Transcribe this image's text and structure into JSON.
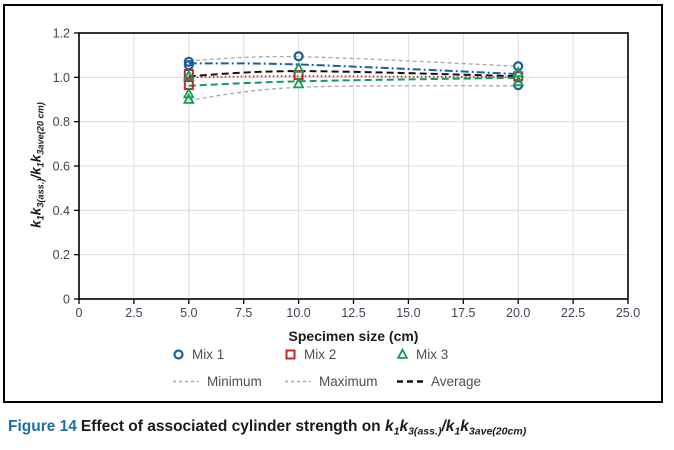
{
  "figure": {
    "caption_segments": [
      {
        "t": "Figure 14",
        "s": "fig"
      },
      {
        "t": "Effect of associated cylinder strength on ",
        "s": ""
      },
      {
        "t": "k",
        "s": "i"
      },
      {
        "t": "1",
        "s": "isub"
      },
      {
        "t": "k",
        "s": "i"
      },
      {
        "t": "3(ass.)",
        "s": "isub"
      },
      {
        "t": "/",
        "s": "i"
      },
      {
        "t": "k",
        "s": "i"
      },
      {
        "t": "1",
        "s": "isub"
      },
      {
        "t": "k",
        "s": "i"
      },
      {
        "t": "3ave(20cm)",
        "s": "isub"
      }
    ]
  },
  "chart_data": {
    "type": "scatter",
    "title": "",
    "xlabel": "Specimen size (cm)",
    "ylabel_segments": [
      {
        "t": "k",
        "s": "i"
      },
      {
        "t": "1",
        "s": "isub"
      },
      {
        "t": "k",
        "s": "i"
      },
      {
        "t": "3(ass.)",
        "s": "isub"
      },
      {
        "t": "/",
        "s": "i"
      },
      {
        "t": "k",
        "s": "i"
      },
      {
        "t": "1",
        "s": "isub"
      },
      {
        "t": "k",
        "s": "i"
      },
      {
        "t": "3ave(20 cm)",
        "s": "isub"
      }
    ],
    "xlim": [
      0,
      25
    ],
    "ylim": [
      0,
      1.2
    ],
    "xticks": [
      0,
      2.5,
      5,
      7.5,
      10,
      12.5,
      15,
      17.5,
      20,
      22.5,
      25
    ],
    "xtick_labels": [
      "0",
      "2.5",
      "5.0",
      "7.5",
      "10.0",
      "12.5",
      "15.0",
      "17.5",
      "20.0",
      "22.5",
      "25.0"
    ],
    "yticks": [
      0,
      0.2,
      0.4,
      0.6,
      0.8,
      1.0,
      1.2
    ],
    "ytick_labels": [
      "0",
      "0.2",
      "0.4",
      "0.6",
      "0.8",
      "1.0",
      "1.2"
    ],
    "grid": true,
    "legend_position": "bottom",
    "colors": {
      "mix1_blue": "#1e5f9e",
      "mix2_red": "#c5272d",
      "mix3_green": "#119d58",
      "minmax_gray": "#a8a8a8",
      "average_black": "#111111",
      "gridline": "#dcdcdc",
      "tick_text": "#3f4552",
      "caption_blue": "#1c6fa5"
    },
    "marker_series": [
      {
        "name": "Mix 1",
        "shape": "circle",
        "color": "#1e5f9e",
        "points": [
          [
            5,
            1.07
          ],
          [
            5,
            1.055
          ],
          [
            10,
            1.095
          ],
          [
            20,
            1.05
          ],
          [
            20,
            0.965
          ]
        ]
      },
      {
        "name": "Mix 2",
        "shape": "square",
        "color": "#c5272d",
        "points": [
          [
            5,
            1.015
          ],
          [
            5,
            0.965
          ],
          [
            10,
            1.01
          ],
          [
            20,
            1.005
          ]
        ]
      },
      {
        "name": "Mix 3",
        "shape": "triangle",
        "color": "#119d58",
        "points": [
          [
            5,
            1.005
          ],
          [
            5,
            0.925
          ],
          [
            5,
            0.9
          ],
          [
            10,
            1.04
          ],
          [
            10,
            0.97
          ],
          [
            20,
            1.02
          ],
          [
            20,
            0.98
          ]
        ]
      }
    ],
    "line_series": [
      {
        "name": "Maximum",
        "color": "#a8a8a8",
        "dash": "4 3",
        "width": 1.3,
        "points": [
          [
            5,
            1.075
          ],
          [
            10,
            1.093
          ],
          [
            20,
            1.05
          ]
        ]
      },
      {
        "name": "Minimum",
        "color": "#a8a8a8",
        "dash": "4 3",
        "width": 1.3,
        "points": [
          [
            5,
            0.897
          ],
          [
            10,
            0.955
          ],
          [
            20,
            0.962
          ]
        ]
      },
      {
        "name": "Mix 1 line",
        "color": "#1e5f9e",
        "dash": "8 3 2 3",
        "width": 2,
        "points": [
          [
            5,
            1.063
          ],
          [
            10,
            1.058
          ],
          [
            20,
            1.015
          ]
        ]
      },
      {
        "name": "Average",
        "color": "#111111",
        "dash": "7 4",
        "width": 2,
        "points": [
          [
            5,
            1.005
          ],
          [
            10,
            1.028
          ],
          [
            20,
            1.005
          ]
        ]
      },
      {
        "name": "Mix 2 line",
        "color": "#c5272d",
        "dash": "1.6 2.4",
        "width": 1.7,
        "points": [
          [
            5,
            1.0
          ],
          [
            10,
            1.005
          ],
          [
            20,
            1.0
          ]
        ]
      },
      {
        "name": "Mix 3 line",
        "color": "#119d58",
        "dash": "7 4",
        "width": 2,
        "points": [
          [
            5,
            0.962
          ],
          [
            10,
            0.982
          ],
          [
            20,
            0.998
          ]
        ]
      }
    ],
    "legend": {
      "rows": [
        [
          {
            "label": "Mix 1",
            "shape": "circle",
            "color": "#1e5f9e",
            "icon": "circle-marker-icon"
          },
          {
            "label": "Mix 2",
            "shape": "square",
            "color": "#c5272d",
            "icon": "square-marker-icon"
          },
          {
            "label": "Mix 3",
            "shape": "triangle",
            "color": "#119d58",
            "icon": "triangle-marker-icon"
          }
        ],
        [
          {
            "label": "Minimum",
            "shape": "dash",
            "color": "#a8a8a8",
            "dash": "3 3",
            "stroke": 1.4,
            "icon": "minimum-dash-icon"
          },
          {
            "label": "Maximum",
            "shape": "dash",
            "color": "#a8a8a8",
            "dash": "3 3",
            "stroke": 1.4,
            "icon": "maximum-dash-icon"
          },
          {
            "label": "Average",
            "shape": "dash",
            "color": "#111111",
            "dash": "6 4",
            "stroke": 2.6,
            "icon": "average-dash-icon"
          }
        ]
      ]
    }
  }
}
